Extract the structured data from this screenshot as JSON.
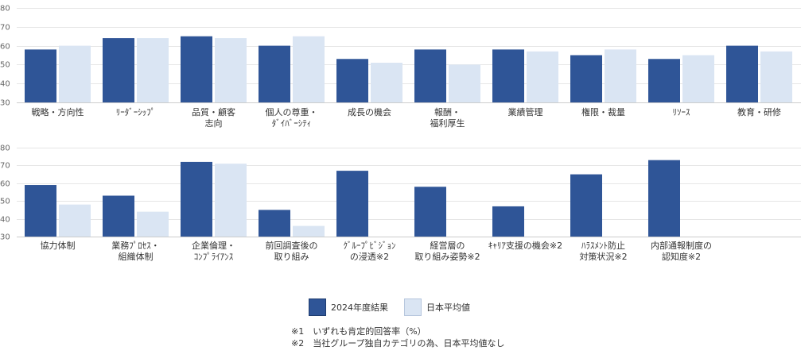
{
  "colors": {
    "series_2024": "#2f5597",
    "series_japan": "#dae5f3"
  },
  "legend": {
    "label_2024": "2024年度結果",
    "label_japan": "日本平均値"
  },
  "notes": {
    "note1": "※1　いずれも肯定的回答率（%）",
    "note2": "※2　当社グループ独自カテゴリの為、日本平均値なし"
  },
  "chart_data": [
    {
      "type": "bar",
      "title": "",
      "ylim": [
        30,
        80
      ],
      "yticks": [
        "30",
        "40",
        "50",
        "60",
        "70",
        "80"
      ],
      "grid": true,
      "categories": [
        [
          "戦略・方向性"
        ],
        [
          "ﾘｰﾀﾞｰｼｯﾌﾟ"
        ],
        [
          "品質・顧客",
          "志向"
        ],
        [
          "個人の尊重・",
          "ﾀﾞｲﾊﾞｰｼﾃｨ"
        ],
        [
          "成長の機会"
        ],
        [
          "報酬・",
          "福利厚生"
        ],
        [
          "業績管理"
        ],
        [
          "権限・裁量"
        ],
        [
          "ﾘｿｰｽ"
        ],
        [
          "教育・研修"
        ]
      ],
      "series": [
        {
          "name": "2024年度結果",
          "values": [
            58,
            64,
            65,
            60,
            53,
            58,
            58,
            55,
            53,
            60
          ]
        },
        {
          "name": "日本平均値",
          "values": [
            60,
            64,
            64,
            65,
            51,
            50,
            57,
            58,
            55,
            57
          ]
        }
      ]
    },
    {
      "type": "bar",
      "title": "",
      "ylim": [
        30,
        80
      ],
      "yticks": [
        "30",
        "40",
        "50",
        "60",
        "70",
        "80"
      ],
      "grid": true,
      "categories": [
        [
          "協力体制"
        ],
        [
          "業務ﾌﾟﾛｾｽ・",
          "組織体制"
        ],
        [
          "企業倫理・",
          "ｺﾝﾌﾟﾗｲｱﾝｽ"
        ],
        [
          "前回調査後の",
          "取り組み"
        ],
        [
          "ｸﾞﾙｰﾌﾟﾋﾞｼﾞｮﾝ",
          "の浸透※2"
        ],
        [
          "経営層の",
          "取り組み姿勢※2"
        ],
        [
          "ｷｬﾘｱ支援の機会※2"
        ],
        [
          "ﾊﾗｽﾒﾝﾄ防止",
          "対策状況※2"
        ],
        [
          "内部通報制度の",
          "認知度※2"
        ],
        []
      ],
      "series": [
        {
          "name": "2024年度結果",
          "values": [
            59,
            53,
            72,
            45,
            67,
            58,
            47,
            65,
            73,
            null
          ]
        },
        {
          "name": "日本平均値",
          "values": [
            48,
            44,
            71,
            36,
            null,
            null,
            null,
            null,
            null,
            null
          ]
        }
      ]
    }
  ]
}
